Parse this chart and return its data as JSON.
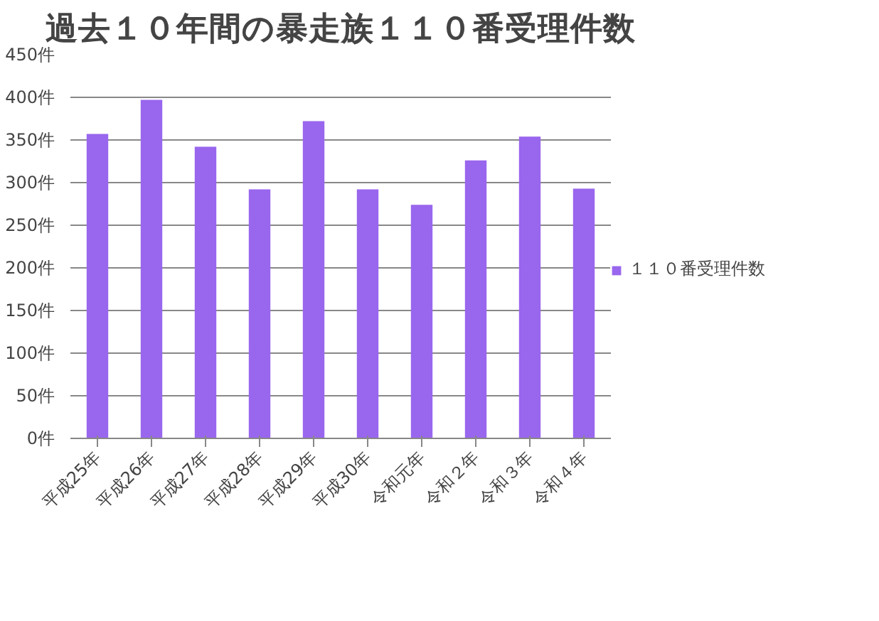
{
  "chart_data": {
    "type": "bar",
    "title": "過去１０年間の暴走族１１０番受理件数",
    "categories": [
      "平成25年",
      "平成26年",
      "平成27年",
      "平成28年",
      "平成29年",
      "平成30年",
      "令和元年",
      "令和２年",
      "令和３年",
      "令和４年"
    ],
    "series": [
      {
        "name": "１１０番受理件数",
        "color": "#9966ee",
        "values": [
          357,
          397,
          342,
          292,
          372,
          292,
          274,
          326,
          354,
          293
        ]
      }
    ],
    "ylim": [
      0,
      450
    ],
    "yticks": [
      {
        "value": 0,
        "label": "0件"
      },
      {
        "value": 50,
        "label": "50件"
      },
      {
        "value": 100,
        "label": "100件"
      },
      {
        "value": 150,
        "label": "150件"
      },
      {
        "value": 200,
        "label": "200件"
      },
      {
        "value": 250,
        "label": "250件"
      },
      {
        "value": 300,
        "label": "300件"
      },
      {
        "value": 350,
        "label": "350件"
      },
      {
        "value": 400,
        "label": "400件"
      },
      {
        "value": 450,
        "label": "450件"
      }
    ],
    "grid": "y",
    "legend": "right"
  }
}
